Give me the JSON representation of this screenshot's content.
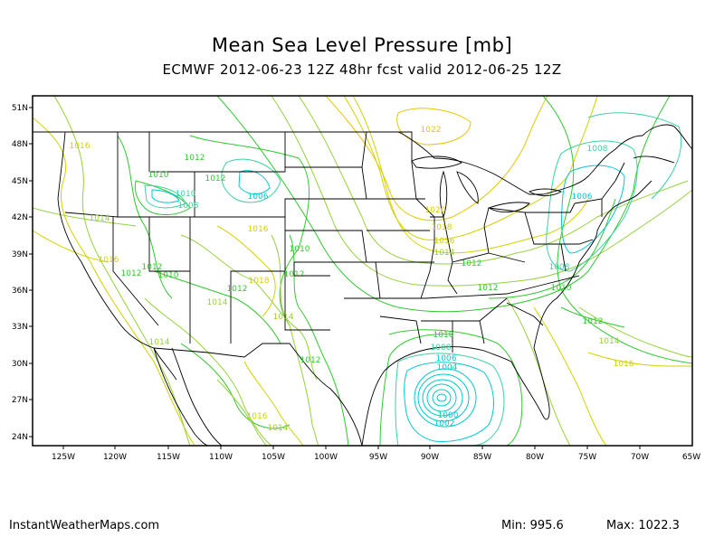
{
  "title": "Mean Sea Level Pressure [mb]",
  "subtitle": "ECMWF 2012-06-23 12Z 48hr fcst valid 2012-06-25 12Z",
  "footer": {
    "site": "InstantWeatherMaps.com",
    "min_label": "Min:",
    "min_value": "995.6",
    "max_label": "Max:",
    "max_value": "1022.3"
  },
  "map": {
    "lat_labels": [
      "51N",
      "48N",
      "45N",
      "42N",
      "39N",
      "36N",
      "33N",
      "30N",
      "27N",
      "24N"
    ],
    "lon_labels": [
      "125W",
      "120W",
      "115W",
      "110W",
      "105W",
      "100W",
      "95W",
      "90W",
      "85W",
      "80W",
      "75W",
      "70W",
      "65W"
    ],
    "colors": {
      "c1000": "#00c8d2",
      "c1006": "#3cd2a0",
      "c1010": "#32c832",
      "c1014": "#96d23c",
      "c1018": "#d2d200",
      "c1022": "#e6c800",
      "borders": "#000000"
    },
    "contour_labels": [
      {
        "text": "1016",
        "c": "c1018"
      },
      {
        "text": "1012",
        "c": "c1010"
      },
      {
        "text": "1010",
        "c": "c1010"
      },
      {
        "text": "1012",
        "c": "c1010"
      },
      {
        "text": "1010",
        "c": "c1006"
      },
      {
        "text": "1008",
        "c": "c1006"
      },
      {
        "text": "1006",
        "c": "c1000"
      },
      {
        "text": "1014",
        "c": "c1014"
      },
      {
        "text": "1016",
        "c": "c1018"
      },
      {
        "text": "1012",
        "c": "c1010"
      },
      {
        "text": "1010",
        "c": "c1010"
      },
      {
        "text": "1016",
        "c": "c1018"
      },
      {
        "text": "1018",
        "c": "c1018"
      },
      {
        "text": "1012",
        "c": "c1010"
      },
      {
        "text": "1014",
        "c": "c1014"
      },
      {
        "text": "1012",
        "c": "c1010"
      },
      {
        "text": "1014",
        "c": "c1014"
      },
      {
        "text": "1014",
        "c": "c1014"
      },
      {
        "text": "1012",
        "c": "c1010"
      },
      {
        "text": "1016",
        "c": "c1018"
      },
      {
        "text": "1014",
        "c": "c1014"
      },
      {
        "text": "1010",
        "c": "c1010"
      },
      {
        "text": "1012",
        "c": "c1010"
      },
      {
        "text": "1022",
        "c": "c1022"
      },
      {
        "text": "1020",
        "c": "c1022"
      },
      {
        "text": "1018",
        "c": "c1018"
      },
      {
        "text": "1016",
        "c": "c1018"
      },
      {
        "text": "1014",
        "c": "c1014"
      },
      {
        "text": "1012",
        "c": "c1010"
      },
      {
        "text": "1012",
        "c": "c1010"
      },
      {
        "text": "1010",
        "c": "c1010"
      },
      {
        "text": "1008",
        "c": "c1006"
      },
      {
        "text": "1006",
        "c": "c1000"
      },
      {
        "text": "1004",
        "c": "c1000"
      },
      {
        "text": "1000",
        "c": "c1000"
      },
      {
        "text": "1002",
        "c": "c1000"
      },
      {
        "text": "1008",
        "c": "c1006"
      },
      {
        "text": "1006",
        "c": "c1000"
      },
      {
        "text": "1008",
        "c": "c1006"
      },
      {
        "text": "1010",
        "c": "c1010"
      },
      {
        "text": "1012",
        "c": "c1010"
      },
      {
        "text": "1014",
        "c": "c1014"
      },
      {
        "text": "1016",
        "c": "c1018"
      }
    ]
  }
}
